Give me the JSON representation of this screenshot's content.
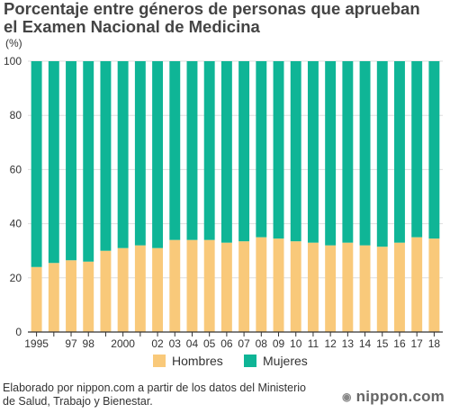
{
  "title": "Porcentaje entre géneros de personas que aprueban\nel Examen Nacional de Medicina",
  "source": "Elaborado por nippon.com a partir de los datos del Ministerio\nde Salud, Trabajo y Bienestar.",
  "brand": "nippon.com",
  "colors": {
    "hombres": "#f9c97a",
    "mujeres": "#0fb596",
    "axis": "#333333",
    "grid": "#dddddd"
  },
  "chart_data": {
    "type": "bar",
    "stacked": true,
    "ylabel": "(%)",
    "ylim": [
      0,
      100
    ],
    "yticks": [
      0,
      20,
      40,
      60,
      80,
      100
    ],
    "categories": [
      "1995",
      "1996",
      "1997",
      "1998",
      "1999",
      "2000",
      "2001",
      "2002",
      "2003",
      "2004",
      "2005",
      "2006",
      "2007",
      "2008",
      "2009",
      "2010",
      "2011",
      "2012",
      "2013",
      "2014",
      "2015",
      "2016",
      "2017",
      "2018"
    ],
    "xtick_labels": [
      "1995",
      "",
      "97",
      "98",
      "",
      "2000",
      "",
      "02",
      "03",
      "04",
      "05",
      "06",
      "07",
      "08",
      "09",
      "10",
      "11",
      "12",
      "13",
      "14",
      "15",
      "16",
      "17",
      "18"
    ],
    "legend": "bottom-center",
    "series": [
      {
        "name": "Hombres",
        "values": [
          24,
          25.5,
          26.5,
          26,
          30,
          31,
          32,
          31,
          34,
          34,
          34,
          33,
          33.5,
          35,
          34.5,
          33.5,
          33,
          32,
          33,
          32,
          31.5,
          33,
          35,
          34.5
        ]
      },
      {
        "name": "Mujeres",
        "values": [
          76,
          74.5,
          73.5,
          74,
          70,
          69,
          68,
          69,
          66,
          66,
          66,
          67,
          66.5,
          65,
          65.5,
          66.5,
          67,
          68,
          67,
          68,
          68.5,
          67,
          65,
          65.5
        ]
      }
    ]
  }
}
